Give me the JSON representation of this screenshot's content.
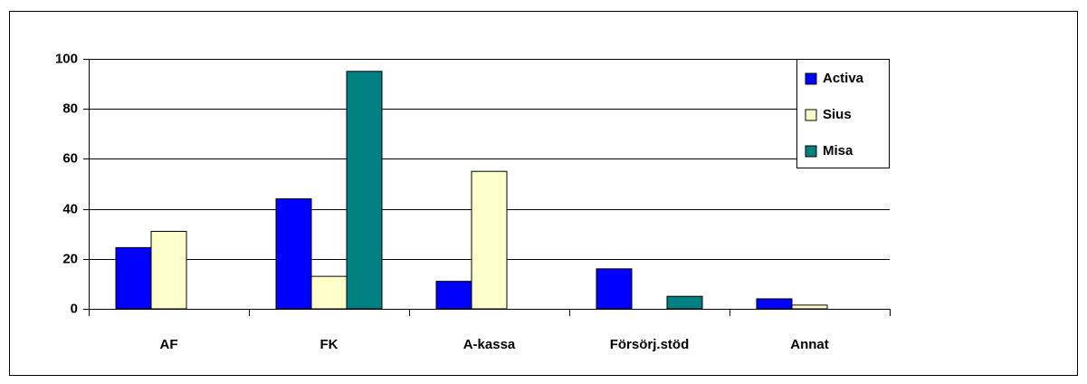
{
  "chart_data": {
    "type": "bar",
    "categories": [
      "AF",
      "FK",
      "A-kassa",
      "Försörj.stöd",
      "Annat"
    ],
    "series": [
      {
        "name": "Activa",
        "color": "#0000ff",
        "values": [
          24.5,
          44,
          11,
          16,
          4
        ]
      },
      {
        "name": "Sius",
        "color": "#ffffcc",
        "values": [
          31,
          13,
          55,
          0,
          1.5
        ]
      },
      {
        "name": "Misa",
        "color": "#008080",
        "values": [
          0,
          95,
          0,
          5,
          0
        ]
      }
    ],
    "ylim": [
      0,
      100
    ],
    "yticks": [
      0,
      20,
      40,
      60,
      80,
      100
    ],
    "grid": true,
    "legend": "top-right"
  }
}
